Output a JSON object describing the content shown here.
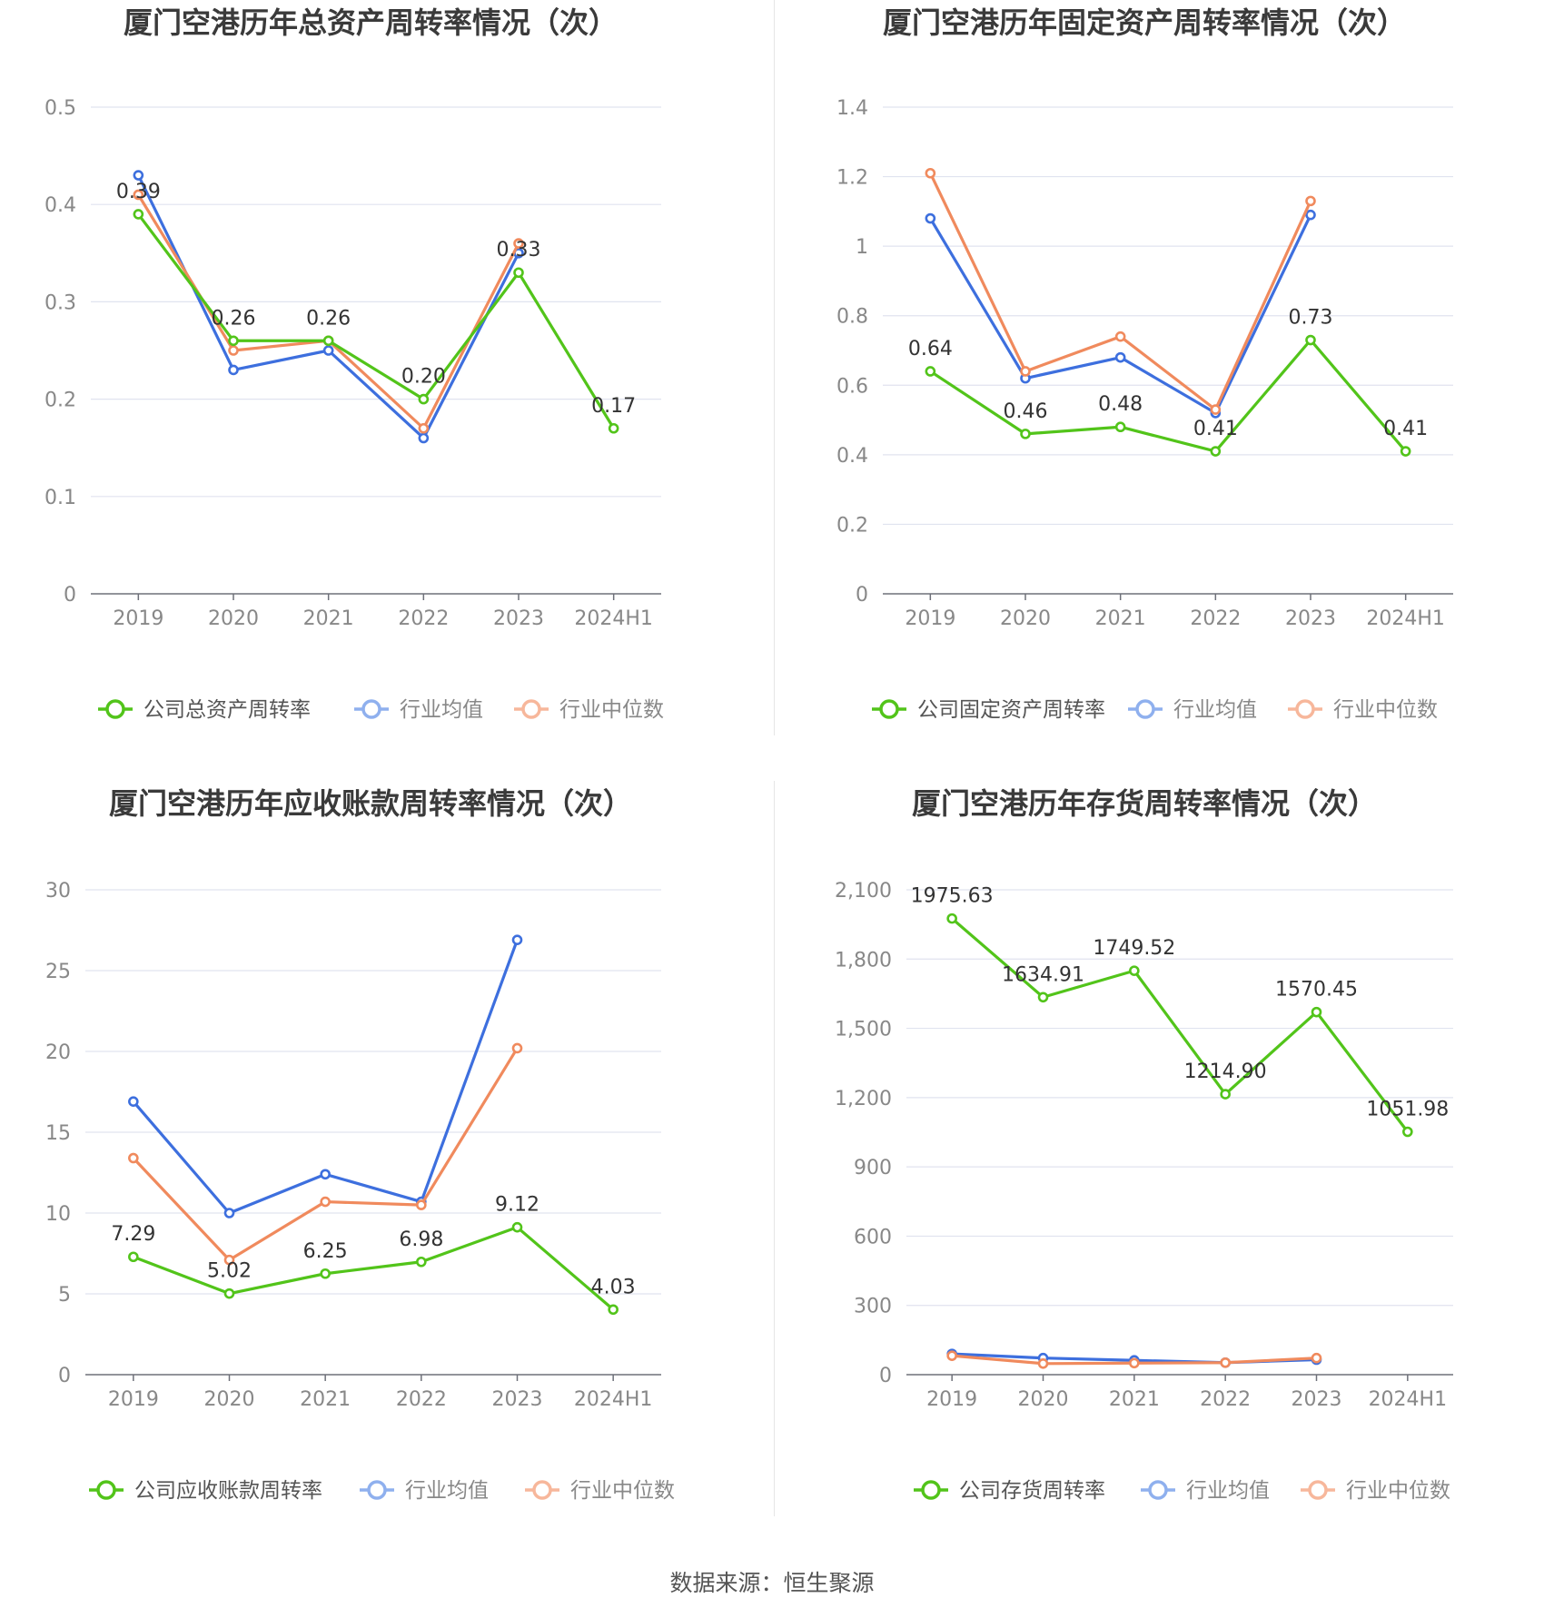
{
  "colors": {
    "company": "#52c41a",
    "avg": "#3d6fde",
    "median": "#f08a5d",
    "avg_legend": "#8fb0ee",
    "median_legend": "#f7b79b"
  },
  "chart_data": [
    {
      "type": "line",
      "title": "厦门空港历年总资产周转率情况（次）",
      "categories": [
        "2019",
        "2020",
        "2021",
        "2022",
        "2023",
        "2024H1"
      ],
      "ylim": [
        0,
        0.5
      ],
      "yticks": [
        "0",
        "0.1",
        "0.2",
        "0.3",
        "0.4",
        "0.5"
      ],
      "yticks_values": [
        0,
        0.1,
        0.2,
        0.3,
        0.4,
        0.5
      ],
      "legend_position": "bottom",
      "series": [
        {
          "name": "公司总资产周转率",
          "values": [
            0.39,
            0.26,
            0.26,
            0.2,
            0.33,
            0.17
          ],
          "labels": [
            "0.39",
            "0.26",
            "0.26",
            "0.20",
            "0.33",
            "0.17"
          ]
        },
        {
          "name": "行业均值",
          "values": [
            0.43,
            0.23,
            0.25,
            0.16,
            0.35,
            null
          ]
        },
        {
          "name": "行业中位数",
          "values": [
            0.41,
            0.25,
            0.26,
            0.17,
            0.36,
            null
          ]
        }
      ]
    },
    {
      "type": "line",
      "title": "厦门空港历年固定资产周转率情况（次）",
      "categories": [
        "2019",
        "2020",
        "2021",
        "2022",
        "2023",
        "2024H1"
      ],
      "ylim": [
        0,
        1.4
      ],
      "yticks": [
        "0",
        "0.2",
        "0.4",
        "0.6",
        "0.8",
        "1",
        "1.2",
        "1.4"
      ],
      "yticks_values": [
        0,
        0.2,
        0.4,
        0.6,
        0.8,
        1,
        1.2,
        1.4
      ],
      "legend_position": "bottom",
      "series": [
        {
          "name": "公司固定资产周转率",
          "values": [
            0.64,
            0.46,
            0.48,
            0.41,
            0.73,
            0.41
          ],
          "labels": [
            "0.64",
            "0.46",
            "0.48",
            "0.41",
            "0.73",
            "0.41"
          ]
        },
        {
          "name": "行业均值",
          "values": [
            1.08,
            0.62,
            0.68,
            0.52,
            1.09,
            null
          ]
        },
        {
          "name": "行业中位数",
          "values": [
            1.21,
            0.64,
            0.74,
            0.53,
            1.13,
            null
          ]
        }
      ]
    },
    {
      "type": "line",
      "title": "厦门空港历年应收账款周转率情况（次）",
      "categories": [
        "2019",
        "2020",
        "2021",
        "2022",
        "2023",
        "2024H1"
      ],
      "ylim": [
        0,
        30
      ],
      "yticks": [
        "0",
        "5",
        "10",
        "15",
        "20",
        "25",
        "30"
      ],
      "yticks_values": [
        0,
        5,
        10,
        15,
        20,
        25,
        30
      ],
      "legend_position": "bottom",
      "series": [
        {
          "name": "公司应收账款周转率",
          "values": [
            7.29,
            5.02,
            6.25,
            6.98,
            9.12,
            4.03
          ],
          "labels": [
            "7.29",
            "5.02",
            "6.25",
            "6.98",
            "9.12",
            "4.03"
          ]
        },
        {
          "name": "行业均值",
          "values": [
            16.9,
            10.0,
            12.4,
            10.7,
            26.9,
            null
          ]
        },
        {
          "name": "行业中位数",
          "values": [
            13.4,
            7.1,
            10.7,
            10.5,
            20.2,
            null
          ]
        }
      ]
    },
    {
      "type": "line",
      "title": "厦门空港历年存货周转率情况（次）",
      "categories": [
        "2019",
        "2020",
        "2021",
        "2022",
        "2023",
        "2024H1"
      ],
      "ylim": [
        0,
        2100
      ],
      "yticks": [
        "0",
        "300",
        "600",
        "900",
        "1,200",
        "1,500",
        "1,800",
        "2,100"
      ],
      "yticks_values": [
        0,
        300,
        600,
        900,
        1200,
        1500,
        1800,
        2100
      ],
      "legend_position": "bottom",
      "series": [
        {
          "name": "公司存货周转率",
          "values": [
            1975.63,
            1634.91,
            1749.52,
            1214.9,
            1570.45,
            1051.98
          ],
          "labels": [
            "1975.63",
            "1634.91",
            "1749.52",
            "1214.90",
            "1570.45",
            "1051.98"
          ]
        },
        {
          "name": "行业均值",
          "values": [
            90,
            72,
            62,
            52,
            65,
            null
          ]
        },
        {
          "name": "行业中位数",
          "values": [
            82,
            48,
            50,
            52,
            72,
            null
          ]
        }
      ]
    }
  ],
  "source": "数据来源：恒生聚源"
}
